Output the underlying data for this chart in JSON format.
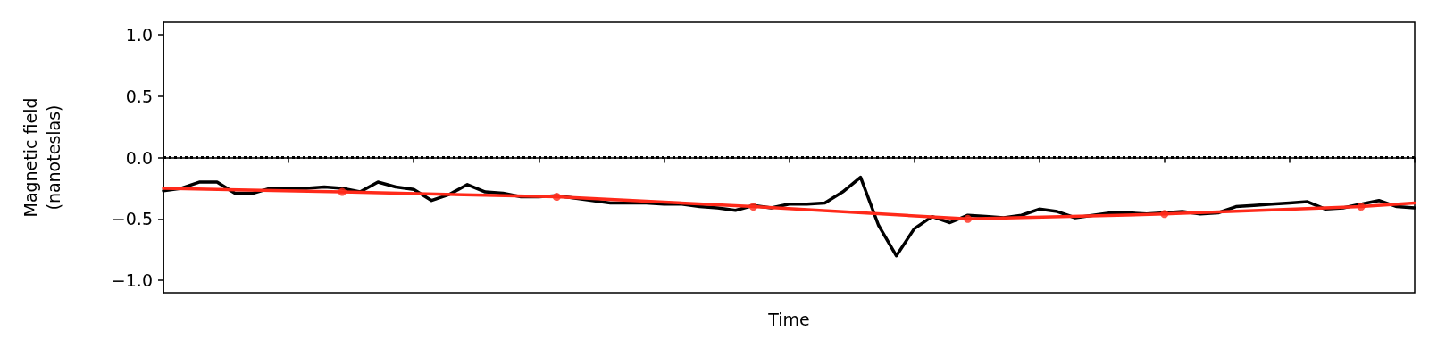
{
  "chart_data": {
    "type": "line",
    "xlabel": "Time",
    "ylabel": "Magnetic field\n(nanoteslas)",
    "categories": [
      null,
      null,
      null,
      null,
      null,
      null,
      null,
      null,
      null,
      null,
      null,
      null,
      null,
      null,
      null,
      null,
      null,
      null,
      null,
      null,
      null,
      null,
      null,
      null,
      null,
      null,
      null,
      null,
      null,
      null,
      null,
      null,
      null,
      null,
      null,
      null,
      null,
      null,
      null,
      null,
      null,
      null,
      null,
      null,
      null,
      null,
      null,
      null,
      null,
      null,
      null,
      null,
      null,
      null,
      null,
      null,
      null,
      null,
      null,
      null,
      null,
      null,
      null,
      null,
      null,
      null,
      null,
      null,
      null,
      null,
      null
    ],
    "series": [
      {
        "color": "#000000",
        "marker": "none",
        "values": [
          -0.27,
          -0.25,
          -0.2,
          -0.2,
          -0.29,
          -0.29,
          -0.25,
          -0.25,
          -0.25,
          -0.24,
          -0.25,
          -0.28,
          -0.2,
          -0.24,
          -0.26,
          -0.35,
          -0.3,
          -0.22,
          -0.28,
          -0.29,
          -0.32,
          -0.32,
          -0.31,
          -0.33,
          -0.35,
          -0.37,
          -0.37,
          -0.37,
          -0.38,
          -0.38,
          -0.4,
          -0.41,
          -0.43,
          -0.39,
          -0.41,
          -0.38,
          -0.38,
          -0.37,
          -0.28,
          -0.16,
          -0.55,
          -0.8,
          -0.58,
          -0.48,
          -0.53,
          -0.47,
          -0.48,
          -0.49,
          -0.47,
          -0.42,
          -0.44,
          -0.49,
          -0.47,
          -0.45,
          -0.45,
          -0.46,
          -0.45,
          -0.44,
          -0.46,
          -0.45,
          -0.4,
          -0.39,
          -0.38,
          -0.37,
          -0.36,
          -0.42,
          -0.41,
          -0.38,
          -0.35,
          -0.4,
          -0.41
        ]
      },
      {
        "color": "#ff2a1a",
        "marker": "none",
        "values": [
          -0.25,
          null,
          null,
          null,
          null,
          null,
          null,
          null,
          null,
          null,
          -0.28,
          null,
          null,
          null,
          null,
          null,
          null,
          null,
          null,
          null,
          null,
          null,
          -0.32,
          null,
          null,
          null,
          null,
          null,
          null,
          null,
          null,
          null,
          null,
          -0.4,
          null,
          null,
          null,
          null,
          null,
          null,
          null,
          null,
          null,
          null,
          null,
          -0.5,
          null,
          null,
          null,
          null,
          null,
          null,
          null,
          null,
          null,
          null,
          -0.46,
          null,
          null,
          null,
          null,
          null,
          null,
          null,
          null,
          null,
          null,
          -0.4,
          null,
          null,
          -0.37
        ]
      },
      {
        "type": "scatter",
        "color": "#ff2a1a",
        "marker": "circle",
        "values": [
          null,
          null,
          null,
          null,
          null,
          null,
          null,
          null,
          null,
          null,
          -0.28,
          null,
          null,
          null,
          null,
          null,
          null,
          null,
          null,
          null,
          null,
          null,
          -0.32,
          null,
          null,
          null,
          null,
          null,
          null,
          null,
          null,
          null,
          null,
          -0.4,
          null,
          null,
          null,
          null,
          null,
          null,
          null,
          null,
          null,
          null,
          null,
          -0.5,
          null,
          null,
          null,
          null,
          null,
          null,
          null,
          null,
          null,
          null,
          -0.46,
          null,
          null,
          null,
          null,
          null,
          null,
          null,
          null,
          null,
          null,
          -0.4,
          null,
          null,
          null
        ]
      }
    ],
    "ylim": [
      -1.1,
      1.1
    ],
    "yticks": [
      {
        "value": -1,
        "label": "−1.0"
      },
      {
        "value": -0.5,
        "label": "−0.5"
      },
      {
        "value": 0,
        "label": "0.0"
      },
      {
        "value": 0.5,
        "label": "0.5"
      },
      {
        "value": 1,
        "label": "1.0"
      }
    ],
    "ref_lines": [
      {
        "axis": "y",
        "value": 0,
        "label": null,
        "color": "#000000",
        "line_style": "dotted"
      }
    ],
    "grid": false
  }
}
